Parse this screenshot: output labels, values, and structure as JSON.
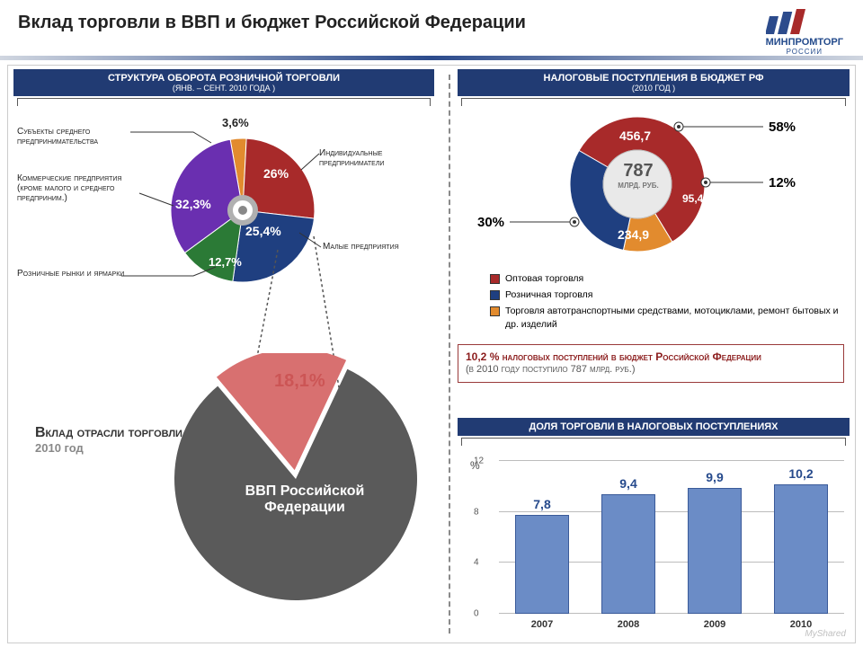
{
  "title": "Вклад торговли в ВВП и бюджет Российской Федерации",
  "logo": {
    "name": "МИНПРОМТОРГ",
    "country": "РОССИИ"
  },
  "panel1": {
    "title": "СТРУКТУРА ОБОРОТА РОЗНИЧНОЙ ТОРГОВЛИ",
    "subtitle": "(ЯНВ. – СЕНТ. 2010 ГОДА )",
    "type": "pie",
    "slices": [
      {
        "label": "Субъекты среднего предпринимательства",
        "value": 3.6,
        "text": "3,6%",
        "color": "#e28b2e"
      },
      {
        "label": "Индивидуальные предприниматели",
        "value": 26,
        "text": "26%",
        "color": "#a82a2a"
      },
      {
        "label": "Малые предприятия",
        "value": 25.4,
        "text": "25,4%",
        "color": "#1f3f80"
      },
      {
        "label": "Розничные рынки и ярмарки",
        "value": 12.7,
        "text": "12,7%",
        "color": "#2b7a36"
      },
      {
        "label": "Коммерческие предприятия (кроме малого и среднего предприним.)",
        "value": 32.3,
        "text": "32,3%",
        "color": "#6a2fb0"
      }
    ],
    "donut": false,
    "radius": 80,
    "center_dot_color": "#ffffff",
    "center_ring_color": "#9aa0a6"
  },
  "gdp": {
    "title": "Вклад отрасли торговли",
    "year": "2010 год",
    "type": "pie",
    "radius": 135,
    "slices": [
      {
        "label": "18,1%",
        "value": 18.1,
        "color": "#d87070"
      },
      {
        "label": "ВВП Российской Федерации",
        "value": 81.9,
        "color": "#5a5a5a"
      }
    ],
    "slice_label": "18,1%",
    "main_label": "ВВП Российской Федерации"
  },
  "panel2": {
    "title": "НАЛОГОВЫЕ ПОСТУПЛЕНИЯ В БЮДЖЕТ РФ",
    "subtitle": "(2010 ГОД )",
    "type": "donut",
    "center_value": "787",
    "center_unit": "МЛРД. РУБ.",
    "radius": 75,
    "inner_radius": 38,
    "slices": [
      {
        "legend": "Оптовая торговля",
        "value": 58,
        "amount": "456,7",
        "pct": "58%",
        "color": "#a82a2a"
      },
      {
        "legend": "Торговля автотранспортными средствами, мотоциклами, ремонт бытовых и др. изделий",
        "value": 12,
        "amount": "95,4",
        "pct": "12%",
        "color": "#e28b2e"
      },
      {
        "legend": "Розничная торговля",
        "value": 30,
        "amount": "234,9",
        "pct": "30%",
        "color": "#1f3f80"
      }
    ],
    "side_pct_30": "30%"
  },
  "callout": {
    "main": "10,2 % налоговых поступлений в бюджет Российской Федерации",
    "sub": "(в 2010 году поступило 787 млрд. руб.)"
  },
  "panel3": {
    "title": "ДОЛЯ ТОРГОВЛИ В НАЛОГОВЫХ ПОСТУПЛЕНИЯХ",
    "type": "bar",
    "y_unit": "%",
    "ylim": [
      0,
      12
    ],
    "ytick_step": 4,
    "bar_color": "#6b8cc6",
    "bar_border": "#3a5a99",
    "categories": [
      "2007",
      "2008",
      "2009",
      "2010"
    ],
    "values": [
      7.8,
      9.4,
      9.9,
      10.2
    ],
    "value_labels": [
      "7,8",
      "9,4",
      "9,9",
      "10,2"
    ]
  },
  "watermark": "MyShared"
}
